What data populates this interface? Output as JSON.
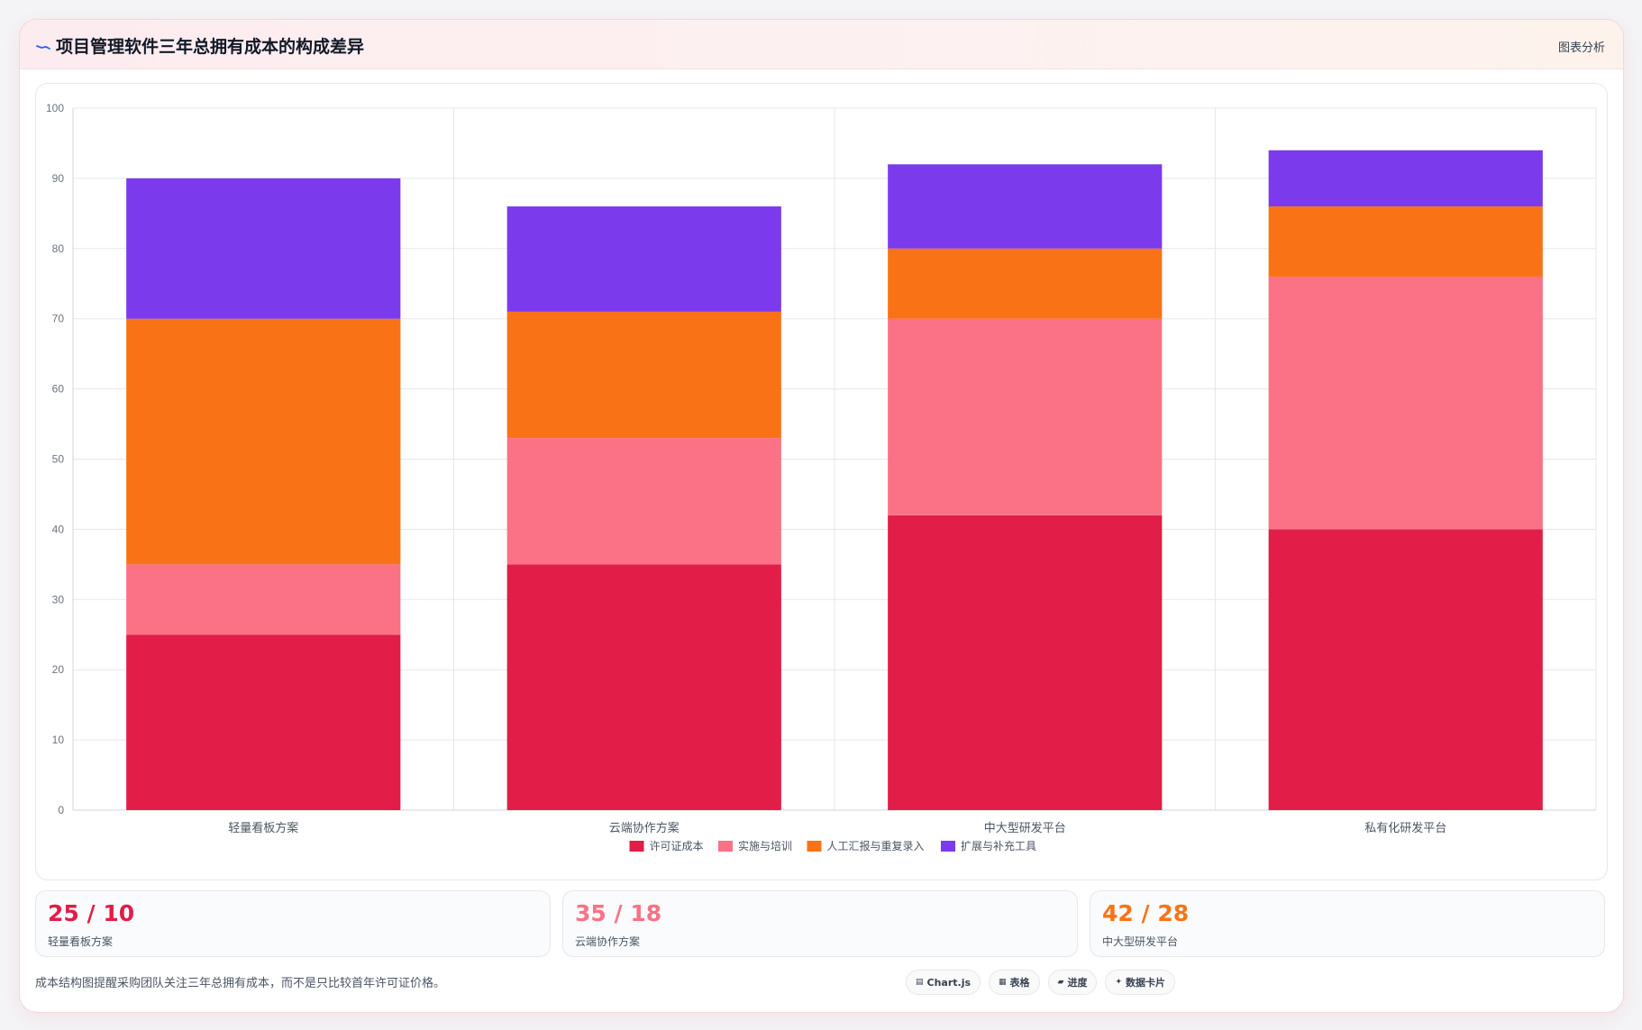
{
  "header": {
    "title": "项目管理软件三年总拥有成本的构成差异",
    "right_label": "图表分析",
    "icon": "trend-line-icon"
  },
  "colors": {
    "license": "#e11d48",
    "implementation": "#fb7185",
    "manual": "#f97316",
    "extension": "#7c3aed",
    "accent": "#2563eb"
  },
  "chart_data": {
    "type": "bar",
    "stacked": true,
    "categories": [
      "轻量看板方案",
      "云端协作方案",
      "中大型研发平台",
      "私有化研发平台"
    ],
    "series": [
      {
        "name": "许可证成本",
        "color": "#e11d48",
        "values": [
          25,
          35,
          42,
          40
        ]
      },
      {
        "name": "实施与培训",
        "color": "#fb7185",
        "values": [
          10,
          18,
          28,
          36
        ]
      },
      {
        "name": "人工汇报与重复录入",
        "color": "#f97316",
        "values": [
          35,
          18,
          10,
          10
        ]
      },
      {
        "name": "扩展与补充工具",
        "color": "#7c3aed",
        "values": [
          20,
          15,
          12,
          8
        ]
      }
    ],
    "ylim": [
      0,
      100
    ],
    "yticks": [
      0,
      10,
      20,
      30,
      40,
      50,
      60,
      70,
      80,
      90,
      100
    ],
    "grid": true,
    "legend_position": "bottom-center",
    "title": "",
    "xlabel": "",
    "ylabel": ""
  },
  "stats": [
    {
      "value": "25 / 10",
      "label": "轻量看板方案",
      "color": "#e11d48"
    },
    {
      "value": "35 / 18",
      "label": "云端协作方案",
      "color": "#fb7185"
    },
    {
      "value": "42 / 28",
      "label": "中大型研发平台",
      "color": "#f97316"
    }
  ],
  "footer": {
    "note": "成本结构图提醒采购团队关注三年总拥有成本，而不是只比较首年许可证价格。",
    "tags": [
      {
        "label": "Chart.js",
        "icon": "chart-icon"
      },
      {
        "label": "表格",
        "icon": "table-icon"
      },
      {
        "label": "进度",
        "icon": "progress-icon"
      },
      {
        "label": "数据卡片",
        "icon": "sparkle-icon"
      }
    ]
  }
}
